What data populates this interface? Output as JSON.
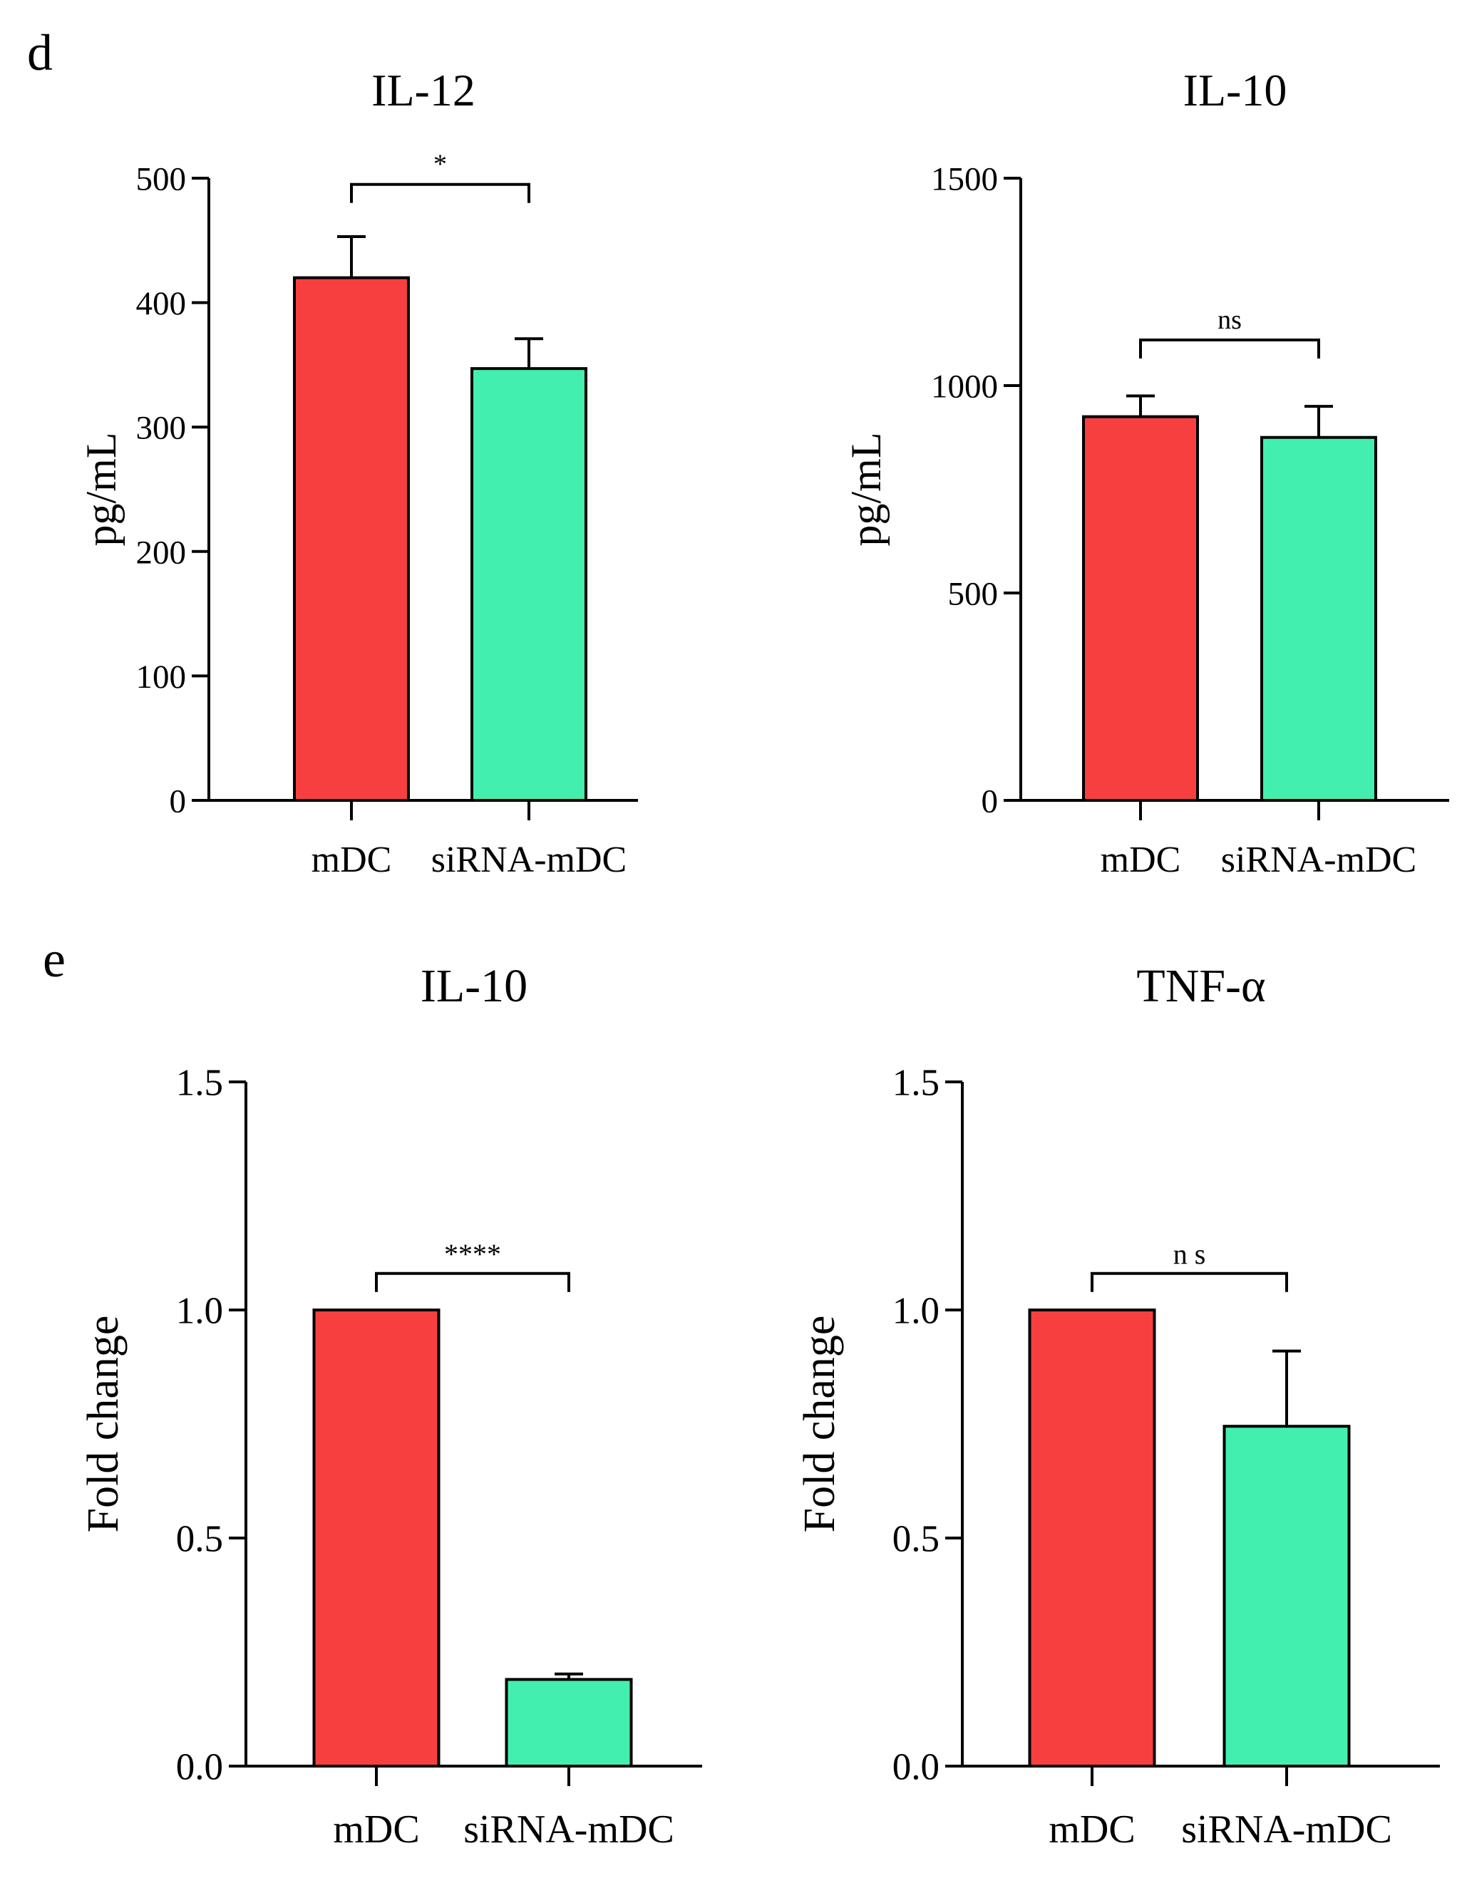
{
  "panel_labels": [
    "d",
    "e"
  ],
  "colors": {
    "mdc": "#f73f40",
    "sirna": "#43efae",
    "axis": "#000000"
  },
  "chart_data": [
    {
      "type": "bar",
      "panel": "d",
      "title": "IL-12",
      "ylabel": "pg/mL",
      "xlabel": "",
      "categories": [
        "mDC",
        "siRNA-mDC"
      ],
      "values": [
        420,
        347
      ],
      "errors": [
        33,
        24
      ],
      "ylim": [
        0,
        500
      ],
      "yticks": [
        0,
        100,
        200,
        300,
        400,
        500
      ],
      "ytick_labels": [
        "0",
        "100",
        "200",
        "300",
        "400",
        "500"
      ],
      "significance": {
        "label": "*",
        "y": 495
      },
      "grid": false,
      "legend": "none"
    },
    {
      "type": "bar",
      "panel": "d",
      "title": "IL-10",
      "ylabel": "pg/mL",
      "xlabel": "",
      "categories": [
        "mDC",
        "siRNA-mDC"
      ],
      "values": [
        925,
        875
      ],
      "errors": [
        50,
        75
      ],
      "ylim": [
        0,
        1500
      ],
      "yticks": [
        0,
        500,
        1000,
        1500
      ],
      "ytick_labels": [
        "0",
        "500",
        "1000",
        "1500"
      ],
      "significance": {
        "label": "ns",
        "y": 1110
      },
      "grid": false,
      "legend": "none"
    },
    {
      "type": "bar",
      "panel": "e",
      "title": "IL-10",
      "ylabel": "Fold change",
      "xlabel": "",
      "categories": [
        "mDC",
        "siRNA-mDC"
      ],
      "values": [
        1.0,
        0.19
      ],
      "errors": [
        0,
        0.012
      ],
      "ylim": [
        0,
        1.5
      ],
      "yticks": [
        0,
        0.5,
        1.0,
        1.5
      ],
      "ytick_labels": [
        "0.0",
        "0.5",
        "1.0",
        "1.5"
      ],
      "significance": {
        "label": "****",
        "y": 1.08
      },
      "grid": false,
      "legend": "none"
    },
    {
      "type": "bar",
      "panel": "e",
      "title": "TNF-α",
      "ylabel": "Fold change",
      "xlabel": "",
      "categories": [
        "mDC",
        "siRNA-mDC"
      ],
      "values": [
        1.0,
        0.745
      ],
      "errors": [
        0,
        0.165
      ],
      "ylim": [
        0,
        1.5
      ],
      "yticks": [
        0,
        0.5,
        1.0,
        1.5
      ],
      "ytick_labels": [
        "0.0",
        "0.5",
        "1.0",
        "1.5"
      ],
      "significance": {
        "label": "n s",
        "y": 1.08
      },
      "grid": false,
      "legend": "none"
    }
  ]
}
